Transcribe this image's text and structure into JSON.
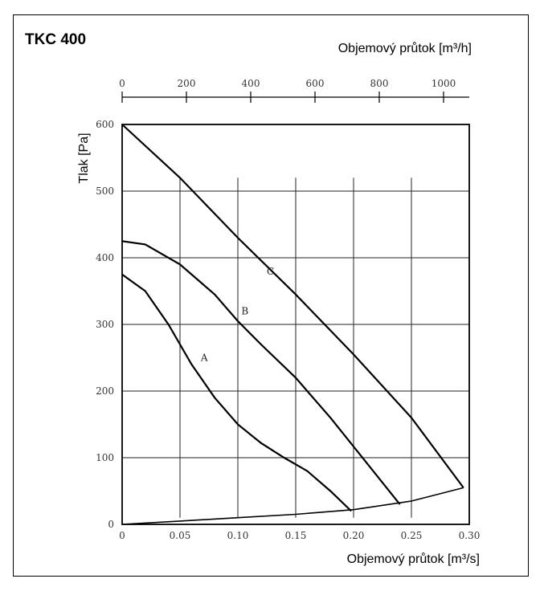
{
  "chart_data": {
    "type": "line",
    "title": "TKC 400",
    "xlabel": "Objemový průtok [m³/s]",
    "x2label": "Objemový průtok [m³/h]",
    "ylabel": "Tlak [Pa]",
    "xlim": [
      0,
      0.3
    ],
    "x2lim": [
      0,
      1080
    ],
    "ylim": [
      0,
      600
    ],
    "x_ticks": [
      "0",
      "0.05",
      "0.10",
      "0.15",
      "0.20",
      "0.25",
      "0.30"
    ],
    "x2_ticks": [
      "0",
      "200",
      "400",
      "600",
      "800",
      "1000"
    ],
    "y_ticks": [
      "0",
      "100",
      "200",
      "300",
      "400",
      "500",
      "600"
    ],
    "grid": true,
    "series": [
      {
        "name": "A",
        "x": [
          0,
          0.02,
          0.04,
          0.06,
          0.08,
          0.1,
          0.12,
          0.14,
          0.16,
          0.18,
          0.198
        ],
        "y": [
          375,
          350,
          300,
          240,
          190,
          150,
          122,
          100,
          80,
          50,
          20
        ]
      },
      {
        "name": "B",
        "x": [
          0,
          0.02,
          0.05,
          0.08,
          0.1,
          0.12,
          0.15,
          0.18,
          0.21,
          0.24
        ],
        "y": [
          425,
          420,
          390,
          345,
          305,
          270,
          220,
          160,
          95,
          30
        ]
      },
      {
        "name": "C",
        "x": [
          0,
          0.05,
          0.1,
          0.15,
          0.2,
          0.25,
          0.295
        ],
        "y": [
          600,
          520,
          430,
          345,
          255,
          160,
          55
        ]
      },
      {
        "name": "",
        "x": [
          0,
          0.05,
          0.1,
          0.15,
          0.2,
          0.25,
          0.295
        ],
        "y": [
          0,
          5,
          10,
          15,
          22,
          35,
          55
        ]
      }
    ]
  }
}
